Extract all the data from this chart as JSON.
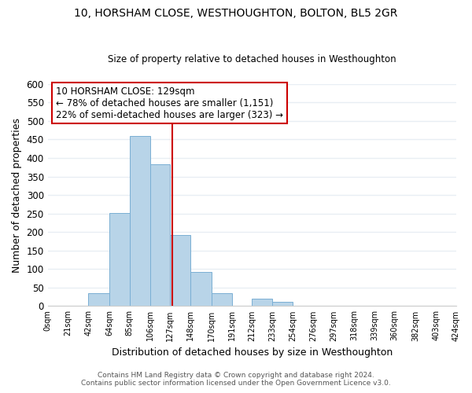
{
  "title": "10, HORSHAM CLOSE, WESTHOUGHTON, BOLTON, BL5 2GR",
  "subtitle": "Size of property relative to detached houses in Westhoughton",
  "xlabel": "Distribution of detached houses by size in Westhoughton",
  "ylabel": "Number of detached properties",
  "bar_edges": [
    0,
    21,
    42,
    64,
    85,
    106,
    127,
    148,
    170,
    191,
    212,
    233,
    254,
    276,
    297,
    318,
    339,
    360,
    382,
    403,
    424
  ],
  "bar_heights": [
    0,
    0,
    35,
    252,
    460,
    382,
    192,
    93,
    35,
    0,
    20,
    12,
    0,
    0,
    0,
    0,
    0,
    0,
    0,
    0
  ],
  "bar_color": "#b8d4e8",
  "bar_edge_color": "#7aafd4",
  "vline_x": 129,
  "vline_color": "#cc0000",
  "ylim": [
    0,
    600
  ],
  "annotation_line1": "10 HORSHAM CLOSE: 129sqm",
  "annotation_line2": "← 78% of detached houses are smaller (1,151)",
  "annotation_line3": "22% of semi-detached houses are larger (323) →",
  "footer_line1": "Contains HM Land Registry data © Crown copyright and database right 2024.",
  "footer_line2": "Contains public sector information licensed under the Open Government Licence v3.0.",
  "tick_labels": [
    "0sqm",
    "21sqm",
    "42sqm",
    "64sqm",
    "85sqm",
    "106sqm",
    "127sqm",
    "148sqm",
    "170sqm",
    "191sqm",
    "212sqm",
    "233sqm",
    "254sqm",
    "276sqm",
    "297sqm",
    "318sqm",
    "339sqm",
    "360sqm",
    "382sqm",
    "403sqm",
    "424sqm"
  ],
  "background_color": "#ffffff",
  "grid_color": "#e8eef4"
}
